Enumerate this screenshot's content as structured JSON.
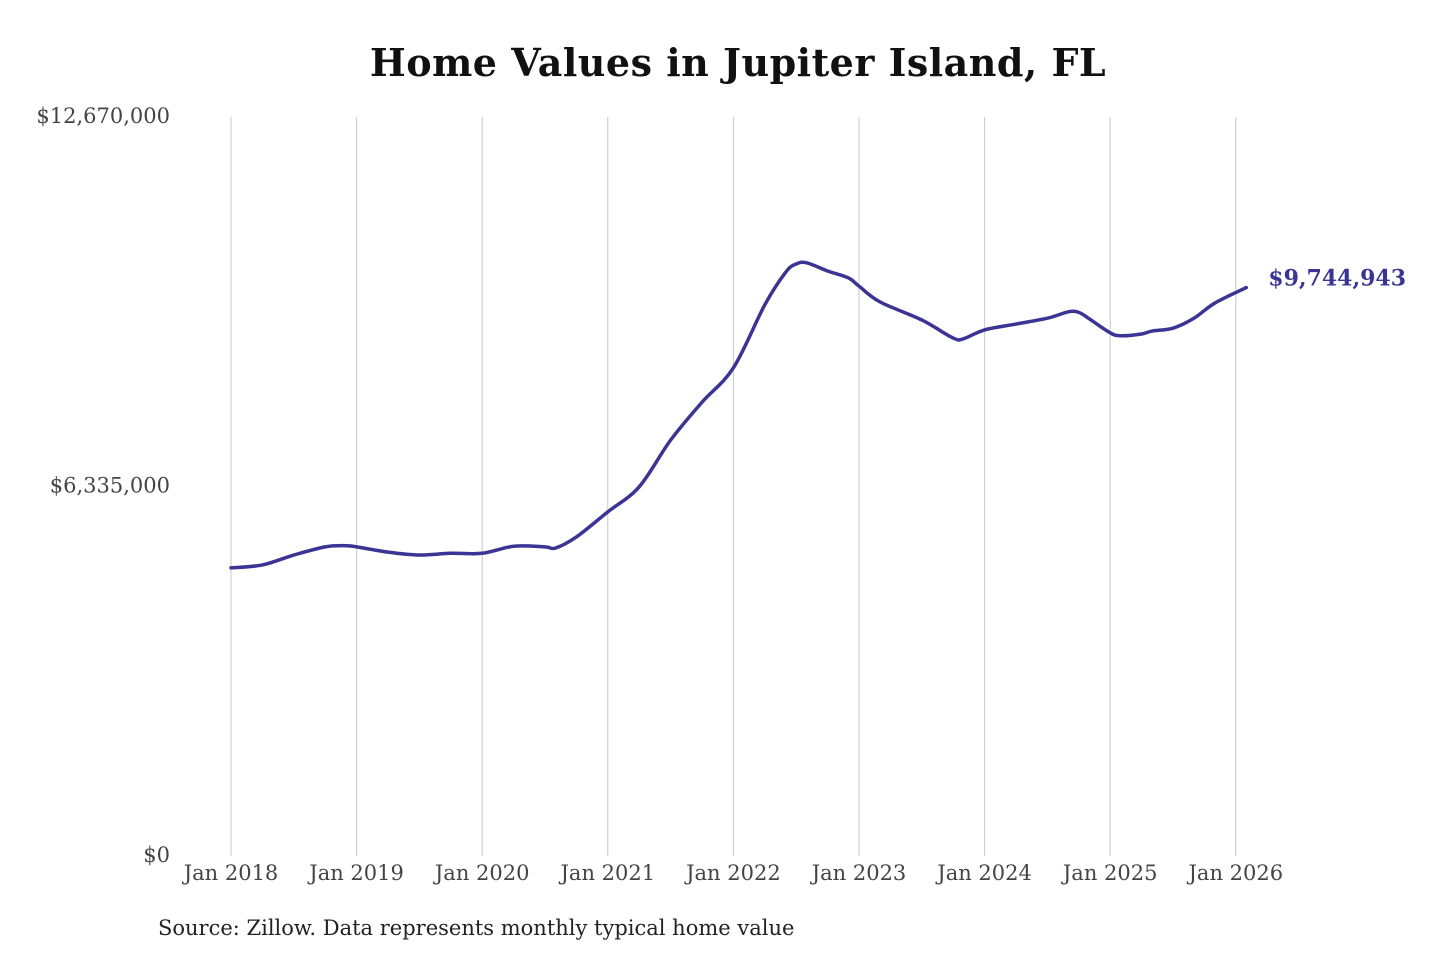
{
  "chart_data": {
    "type": "line",
    "title": "Home Values in Jupiter Island, FL",
    "xlabel": "",
    "ylabel": "",
    "ylim": [
      0,
      12670000
    ],
    "y_ticks": [
      "$0",
      "$6,335,000",
      "$12,670,000"
    ],
    "y_tick_values": [
      0,
      6335000,
      12670000
    ],
    "x_ticks": [
      "Jan 2018",
      "Jan 2019",
      "Jan 2020",
      "Jan 2021",
      "Jan 2022",
      "Jan 2023",
      "Jan 2024",
      "Jan 2025",
      "Jan 2026"
    ],
    "grid": "vertical",
    "line_color": "#3a3494",
    "end_label": "$9,744,943",
    "series": [
      {
        "x": [
          "2018-01",
          "2018-04",
          "2018-07",
          "2018-10",
          "2018-12",
          "2019-01",
          "2019-04",
          "2019-07",
          "2019-10",
          "2020-01",
          "2020-04",
          "2020-07",
          "2020-08",
          "2020-10",
          "2021-01",
          "2021-04",
          "2021-07",
          "2021-10",
          "2022-01",
          "2022-04",
          "2022-06",
          "2022-07",
          "2022-08",
          "2022-10",
          "2022-12",
          "2023-01",
          "2023-03",
          "2023-07",
          "2023-10",
          "2023-11",
          "2024-01",
          "2024-04",
          "2024-07",
          "2024-09",
          "2024-10",
          "2024-11",
          "2025-01",
          "2025-02",
          "2025-04",
          "2025-05",
          "2025-07",
          "2025-09",
          "2025-11",
          "2026-02"
        ],
        "values": [
          4940000,
          4990000,
          5160000,
          5300000,
          5320000,
          5300000,
          5210000,
          5160000,
          5190000,
          5190000,
          5310000,
          5300000,
          5280000,
          5470000,
          5900000,
          6330000,
          7130000,
          7780000,
          8370000,
          9450000,
          10010000,
          10150000,
          10170000,
          10030000,
          9910000,
          9770000,
          9500000,
          9190000,
          8880000,
          8870000,
          9020000,
          9120000,
          9220000,
          9330000,
          9320000,
          9210000,
          8970000,
          8920000,
          8950000,
          9000000,
          9050000,
          9220000,
          9480000,
          9744943
        ]
      }
    ]
  },
  "source": "Source: Zillow. Data represents monthly typical home value"
}
